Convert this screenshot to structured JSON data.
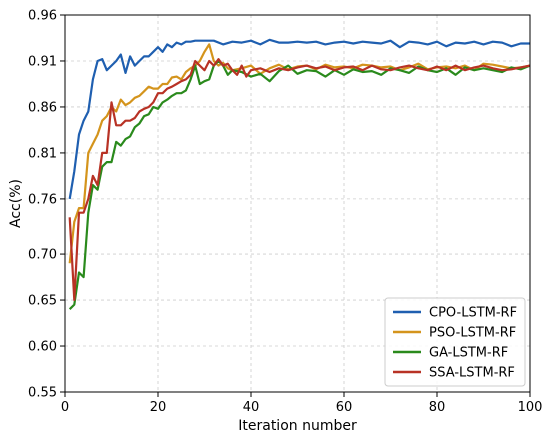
{
  "chart_data": {
    "type": "line",
    "title": "",
    "xlabel": "Iteration number",
    "ylabel": "Acc(%)",
    "xlim": [
      0,
      100
    ],
    "ylim": [
      0.55,
      0.96
    ],
    "xticks": [
      0,
      20,
      40,
      60,
      80,
      100
    ],
    "yticks": [
      0.55,
      0.6,
      0.65,
      0.7,
      0.76,
      0.81,
      0.86,
      0.91,
      0.96
    ],
    "ytick_labels": [
      "0.55",
      "0.60",
      "0.65",
      "0.70",
      "0.76",
      "0.81",
      "0.86",
      "0.91",
      "0.96"
    ],
    "grid": true,
    "legend_position": "bottom-right",
    "series": [
      {
        "name": "CPO-LSTM-RF",
        "color": "#1f5fb0",
        "x": [
          1,
          2,
          3,
          4,
          5,
          6,
          7,
          8,
          9,
          10,
          11,
          12,
          13,
          14,
          15,
          16,
          17,
          18,
          19,
          20,
          21,
          22,
          23,
          24,
          25,
          26,
          27,
          28,
          29,
          30,
          32,
          34,
          36,
          38,
          40,
          42,
          44,
          46,
          48,
          50,
          52,
          54,
          56,
          58,
          60,
          62,
          64,
          66,
          68,
          70,
          72,
          74,
          76,
          78,
          80,
          82,
          84,
          86,
          88,
          90,
          92,
          94,
          96,
          98,
          100
        ],
        "values": [
          0.76,
          0.79,
          0.83,
          0.845,
          0.855,
          0.89,
          0.91,
          0.912,
          0.9,
          0.905,
          0.91,
          0.917,
          0.897,
          0.915,
          0.905,
          0.91,
          0.915,
          0.915,
          0.92,
          0.925,
          0.92,
          0.928,
          0.925,
          0.93,
          0.928,
          0.931,
          0.931,
          0.932,
          0.932,
          0.932,
          0.932,
          0.928,
          0.931,
          0.93,
          0.932,
          0.928,
          0.933,
          0.93,
          0.93,
          0.931,
          0.93,
          0.931,
          0.928,
          0.93,
          0.931,
          0.929,
          0.931,
          0.93,
          0.929,
          0.932,
          0.925,
          0.931,
          0.93,
          0.928,
          0.931,
          0.926,
          0.93,
          0.929,
          0.931,
          0.928,
          0.931,
          0.93,
          0.926,
          0.929,
          0.929
        ]
      },
      {
        "name": "PSO-LSTM-RF",
        "color": "#d4941c",
        "x": [
          1,
          2,
          3,
          4,
          5,
          6,
          7,
          8,
          9,
          10,
          11,
          12,
          13,
          14,
          15,
          16,
          17,
          18,
          19,
          20,
          21,
          22,
          23,
          24,
          25,
          26,
          27,
          28,
          29,
          30,
          31,
          32,
          33,
          34,
          35,
          36,
          38,
          40,
          42,
          44,
          46,
          48,
          50,
          52,
          54,
          56,
          58,
          60,
          62,
          64,
          66,
          68,
          70,
          72,
          74,
          76,
          78,
          80,
          82,
          84,
          86,
          88,
          90,
          92,
          94,
          96,
          98,
          100
        ],
        "values": [
          0.69,
          0.735,
          0.75,
          0.75,
          0.81,
          0.82,
          0.83,
          0.845,
          0.85,
          0.86,
          0.855,
          0.868,
          0.862,
          0.865,
          0.87,
          0.872,
          0.877,
          0.882,
          0.88,
          0.88,
          0.885,
          0.885,
          0.892,
          0.893,
          0.89,
          0.898,
          0.902,
          0.905,
          0.91,
          0.92,
          0.928,
          0.91,
          0.905,
          0.908,
          0.902,
          0.9,
          0.902,
          0.905,
          0.896,
          0.902,
          0.906,
          0.901,
          0.904,
          0.905,
          0.901,
          0.906,
          0.903,
          0.904,
          0.902,
          0.906,
          0.905,
          0.903,
          0.904,
          0.9,
          0.903,
          0.907,
          0.901,
          0.903,
          0.904,
          0.902,
          0.905,
          0.9,
          0.907,
          0.906,
          0.904,
          0.902,
          0.903,
          0.905
        ]
      },
      {
        "name": "GA-LSTM-RF",
        "color": "#2a8a1c",
        "x": [
          1,
          2,
          3,
          4,
          5,
          6,
          7,
          8,
          9,
          10,
          11,
          12,
          13,
          14,
          15,
          16,
          17,
          18,
          19,
          20,
          21,
          22,
          23,
          24,
          25,
          26,
          27,
          28,
          29,
          30,
          31,
          32,
          33,
          34,
          35,
          36,
          38,
          40,
          42,
          44,
          46,
          48,
          50,
          52,
          54,
          56,
          58,
          60,
          62,
          64,
          66,
          68,
          70,
          72,
          74,
          76,
          78,
          80,
          82,
          84,
          86,
          88,
          90,
          92,
          94,
          96,
          98,
          100
        ],
        "values": [
          0.64,
          0.645,
          0.68,
          0.675,
          0.745,
          0.775,
          0.77,
          0.795,
          0.8,
          0.8,
          0.822,
          0.818,
          0.825,
          0.828,
          0.838,
          0.842,
          0.85,
          0.852,
          0.86,
          0.858,
          0.865,
          0.868,
          0.872,
          0.875,
          0.875,
          0.878,
          0.89,
          0.905,
          0.885,
          0.888,
          0.89,
          0.905,
          0.91,
          0.905,
          0.895,
          0.9,
          0.898,
          0.893,
          0.896,
          0.888,
          0.899,
          0.905,
          0.896,
          0.9,
          0.899,
          0.893,
          0.9,
          0.895,
          0.901,
          0.898,
          0.899,
          0.895,
          0.902,
          0.9,
          0.897,
          0.904,
          0.9,
          0.898,
          0.902,
          0.895,
          0.903,
          0.9,
          0.902,
          0.9,
          0.898,
          0.903,
          0.901,
          0.905
        ]
      },
      {
        "name": "SSA-LSTM-RF",
        "color": "#b83225",
        "x": [
          1,
          2,
          3,
          4,
          5,
          6,
          7,
          8,
          9,
          10,
          11,
          12,
          13,
          14,
          15,
          16,
          17,
          18,
          19,
          20,
          21,
          22,
          23,
          24,
          25,
          26,
          27,
          28,
          29,
          30,
          31,
          32,
          33,
          34,
          35,
          36,
          37,
          38,
          39,
          40,
          42,
          44,
          46,
          48,
          50,
          52,
          54,
          56,
          58,
          60,
          62,
          64,
          66,
          68,
          70,
          72,
          74,
          76,
          78,
          80,
          82,
          84,
          86,
          88,
          90,
          92,
          94,
          96,
          98,
          100
        ],
        "values": [
          0.74,
          0.65,
          0.745,
          0.745,
          0.76,
          0.785,
          0.775,
          0.81,
          0.81,
          0.865,
          0.84,
          0.84,
          0.845,
          0.845,
          0.848,
          0.855,
          0.858,
          0.86,
          0.865,
          0.875,
          0.875,
          0.88,
          0.882,
          0.885,
          0.888,
          0.89,
          0.895,
          0.91,
          0.905,
          0.9,
          0.91,
          0.905,
          0.912,
          0.905,
          0.907,
          0.9,
          0.895,
          0.905,
          0.893,
          0.9,
          0.902,
          0.898,
          0.902,
          0.9,
          0.903,
          0.905,
          0.902,
          0.904,
          0.9,
          0.903,
          0.904,
          0.9,
          0.905,
          0.901,
          0.9,
          0.903,
          0.905,
          0.902,
          0.9,
          0.904,
          0.9,
          0.905,
          0.9,
          0.903,
          0.905,
          0.902,
          0.9,
          0.901,
          0.903,
          0.905
        ]
      }
    ]
  }
}
